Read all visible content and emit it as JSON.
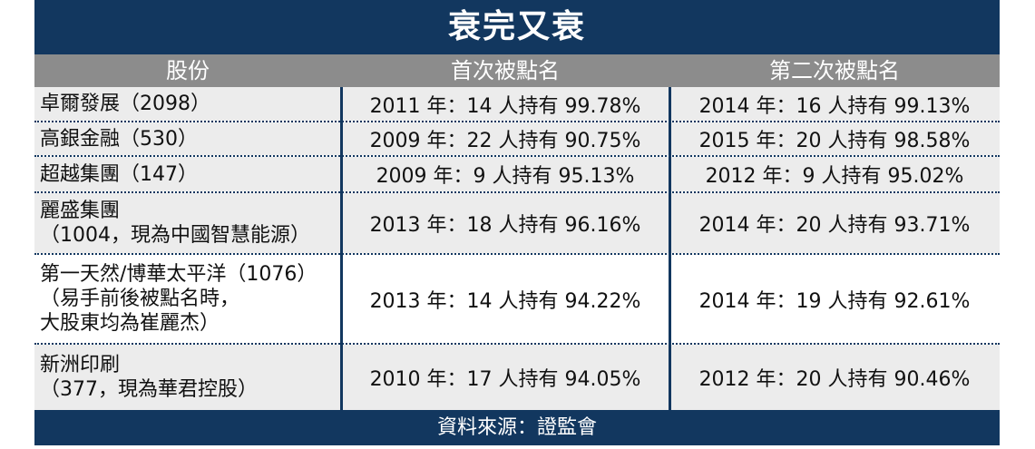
{
  "title": "衰完又衰",
  "headers": [
    "股份",
    "首次被點名",
    "第二次被點名"
  ],
  "rows": [
    {
      "stock": "卓爾發展（2098）",
      "first": "2011 年：14 人持有 99.78%",
      "second": "2014 年：16 人持有 99.13%"
    },
    {
      "stock": "高銀金融（530）",
      "first": "2009 年：22 人持有 90.75%",
      "second": "2015 年：20 人持有 98.58%"
    },
    {
      "stock": "超越集團（147）",
      "first": "2009 年：9 人持有 95.13%",
      "second": "2012 年：9 人持有 95.02%"
    },
    {
      "stock": "麗盛集團\n（1004，現為中國智慧能源）",
      "first": "2013 年：18 人持有 96.16%",
      "second": "2014 年：20 人持有 93.71%"
    },
    {
      "stock": "第一天然/博華太平洋（1076）\n（易手前後被點名時，\n大股東均為崔麗杰）",
      "first": "2013 年：14 人持有 94.22%",
      "second": "2014 年：19 人持有 92.61%"
    },
    {
      "stock": "新洲印刷\n（377，現為華君控股）",
      "first": "2010 年：17 人持有 94.05%",
      "second": "2012 年：20 人持有 90.46%"
    }
  ],
  "source": "資料來源：證監會",
  "colors": {
    "navy": "#12375f",
    "header_gray": "#8c8c8c",
    "row_shade": "#ececec"
  }
}
